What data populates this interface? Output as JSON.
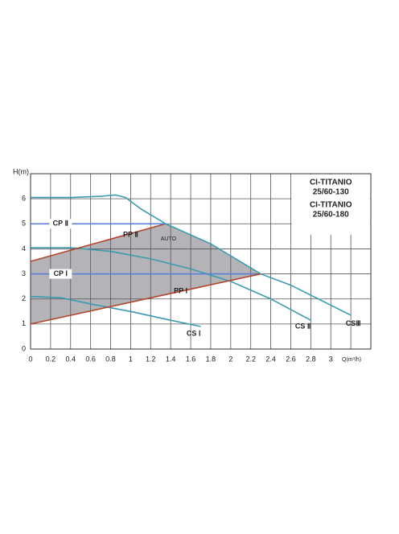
{
  "chart_data": {
    "type": "line",
    "y_label": "H(m)",
    "x_label": "Q(m³/h)",
    "legend_lines": [
      "CI-TITANIO",
      "25/60-130",
      "CI-TITANIO",
      "25/60-180"
    ],
    "region_label": "AUTO",
    "xlim": [
      0,
      3.4
    ],
    "ylim": [
      0,
      7
    ],
    "xticks": [
      0,
      0.2,
      0.4,
      0.6,
      0.8,
      1,
      1.2,
      1.4,
      1.6,
      1.8,
      2,
      2.2,
      2.4,
      2.6,
      2.8,
      3
    ],
    "yticks": [
      0,
      1,
      2,
      3,
      4,
      5,
      6
    ],
    "grid": true,
    "series": [
      {
        "name": "CSⅢ",
        "color": "#3a9bb0",
        "x": [
          0,
          0.4,
          0.7,
          0.85,
          0.95,
          1.1,
          1.35,
          1.8,
          2.3,
          2.6,
          3.2
        ],
        "values": [
          6.05,
          6.05,
          6.1,
          6.15,
          6.05,
          5.6,
          5.0,
          4.2,
          3.0,
          2.55,
          1.35
        ]
      },
      {
        "name": "CS Ⅱ",
        "color": "#3a9bb0",
        "x": [
          0,
          0.4,
          0.8,
          1.2,
          1.6,
          2.0,
          2.4,
          2.8
        ],
        "values": [
          4.05,
          4.05,
          3.9,
          3.6,
          3.2,
          2.7,
          2.0,
          1.15
        ]
      },
      {
        "name": "CS Ⅰ",
        "color": "#3a9bb0",
        "x": [
          0,
          0.3,
          0.6,
          1.0,
          1.4,
          1.7
        ],
        "values": [
          2.1,
          2.05,
          1.8,
          1.5,
          1.15,
          0.9
        ]
      },
      {
        "name": "PP Ⅱ",
        "color": "#b5452d",
        "x": [
          0,
          1.35
        ],
        "values": [
          3.5,
          5.0
        ]
      },
      {
        "name": "PP Ⅰ",
        "color": "#b5452d",
        "x": [
          0,
          2.3
        ],
        "values": [
          1.0,
          3.0
        ]
      },
      {
        "name": "CP Ⅱ",
        "color": "#5a7fd6",
        "x": [
          0,
          1.35
        ],
        "values": [
          5.0,
          5.0
        ]
      },
      {
        "name": "CP Ⅰ",
        "color": "#5a7fd6",
        "x": [
          0,
          2.25
        ],
        "values": [
          3.0,
          3.0
        ]
      }
    ]
  }
}
